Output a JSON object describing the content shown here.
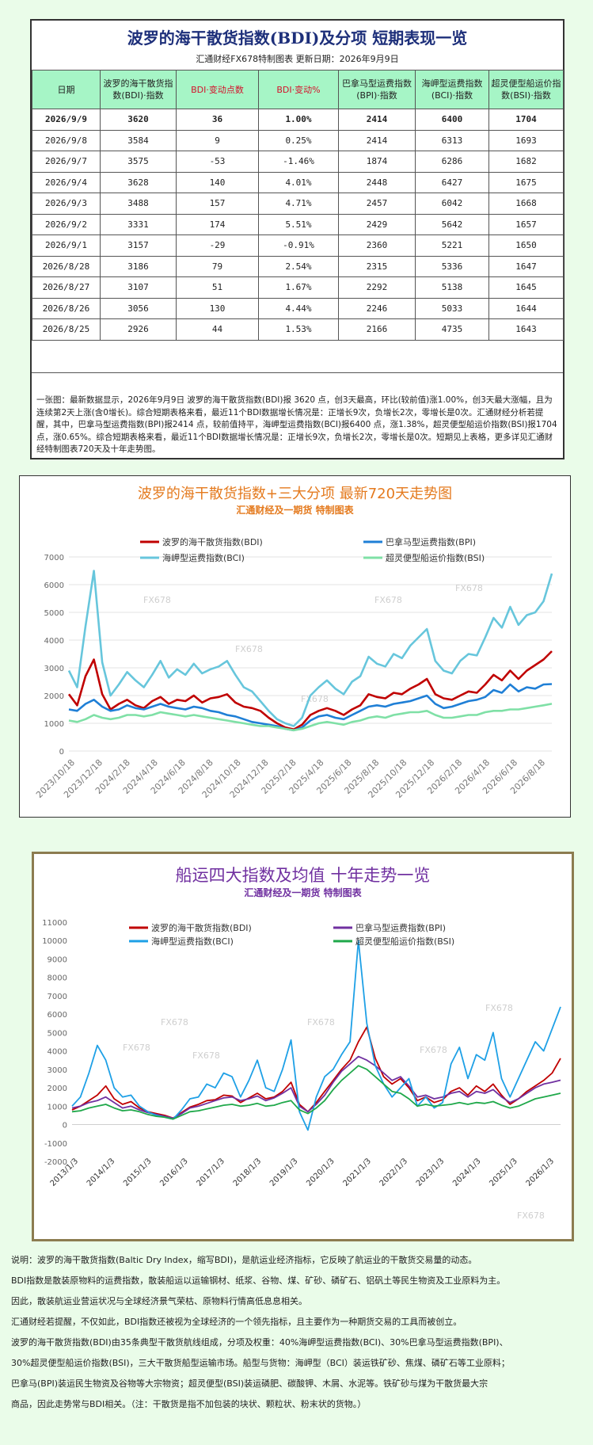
{
  "table_title": "波罗的海干散货指数(BDI)及分项  短期表现一览",
  "table_subtitle": "汇通财经FX678特制图表      更新日期：2026年9月9日",
  "columns": [
    "日期",
    "波罗的海干散货指数(BDI)·指数",
    "BDI·变动点数",
    "BDI·变动%",
    "巴拿马型运费指数(BPI)·指数",
    "海岬型运费指数(BCI)·指数",
    "超灵便型船运价指数(BSI)·指数"
  ],
  "rows": [
    [
      "2026/9/9",
      "3620",
      "36",
      "1.00%",
      "2414",
      "6400",
      "1704"
    ],
    [
      "2026/9/8",
      "3584",
      "9",
      "0.25%",
      "2414",
      "6313",
      "1693"
    ],
    [
      "2026/9/7",
      "3575",
      "-53",
      "-1.46%",
      "1874",
      "6286",
      "1682"
    ],
    [
      "2026/9/4",
      "3628",
      "140",
      "4.01%",
      "2448",
      "6427",
      "1675"
    ],
    [
      "2026/9/3",
      "3488",
      "157",
      "4.71%",
      "2457",
      "6042",
      "1668"
    ],
    [
      "2026/9/2",
      "3331",
      "174",
      "5.51%",
      "2429",
      "5642",
      "1657"
    ],
    [
      "2026/9/1",
      "3157",
      "-29",
      "-0.91%",
      "2360",
      "5221",
      "1650"
    ],
    [
      "2026/8/28",
      "3186",
      "79",
      "2.54%",
      "2315",
      "5336",
      "1647"
    ],
    [
      "2026/8/27",
      "3107",
      "51",
      "1.67%",
      "2292",
      "5138",
      "1645"
    ],
    [
      "2026/8/26",
      "3056",
      "130",
      "4.44%",
      "2246",
      "5033",
      "1644"
    ],
    [
      "2026/8/25",
      "2926",
      "44",
      "1.53%",
      "2166",
      "4735",
      "1643"
    ]
  ],
  "summary": "一张图：最新数据显示，2026年9月9日 波罗的海干散货指数(BDI)报 3620 点，创3天最高，环比(较前值)涨1.00%，创3天最大涨幅，且为连续第2天上涨(含0增长)。综合短期表格来看，最近11个BDI数据增长情况是：正增长9次，负增长2次，零增长是0次。汇通财经分析若提醒，其中，巴拿马型运费指数(BPI)报2414 点，较前值持平，海岬型运费指数(BCI)报6400 点，涨1.38%，超灵便型船运价指数(BSI)报1704 点，涨0.65%。综合短期表格来看，最近11个BDI数据增长情况是：正增长9次，负增长2次，零增长是0次。短期见上表格，更多详见汇通财经特制图表720天及十年走势图。",
  "chart_data": [
    {
      "type": "line",
      "title": "波罗的海干散货指数+三大分项  最新720天走势图",
      "subtitle": "汇通财经及一期货  特制图表",
      "watermark": "FX678",
      "ylim": [
        0,
        7000
      ],
      "yticks": [
        0,
        1000,
        2000,
        3000,
        4000,
        5000,
        6000,
        7000
      ],
      "x_labels": [
        "2023/10/18",
        "2023/12/18",
        "2024/2/18",
        "2024/4/18",
        "2024/6/18",
        "2024/8/18",
        "2024/10/18",
        "2024/12/18",
        "2025/2/18",
        "2025/4/18",
        "2025/6/18",
        "2025/8/18",
        "2025/10/18",
        "2025/12/18",
        "2026/2/18",
        "2026/4/18",
        "2026/6/18",
        "2026/8/18"
      ],
      "grid": true,
      "legend_position": "top",
      "series": [
        {
          "name": "波罗的海干散货指数(BDI)",
          "color": "#c00000",
          "values": [
            2050,
            1650,
            2700,
            3300,
            2050,
            1500,
            1700,
            1850,
            1650,
            1550,
            1800,
            1950,
            1700,
            1850,
            1800,
            2000,
            1750,
            1900,
            1950,
            2050,
            1750,
            1600,
            1550,
            1450,
            1200,
            1000,
            850,
            780,
            950,
            1300,
            1450,
            1550,
            1450,
            1300,
            1500,
            1650,
            2050,
            1950,
            1900,
            2100,
            2050,
            2250,
            2400,
            2600,
            2050,
            1900,
            1850,
            2000,
            2150,
            2100,
            2400,
            2750,
            2550,
            2900,
            2600,
            2900,
            3100,
            3300,
            3600
          ]
        },
        {
          "name": "巴拿马型运费指数(BPI)",
          "color": "#1f7fd6",
          "values": [
            1500,
            1450,
            1700,
            1850,
            1600,
            1450,
            1500,
            1650,
            1550,
            1500,
            1600,
            1700,
            1600,
            1550,
            1500,
            1600,
            1550,
            1450,
            1400,
            1300,
            1250,
            1150,
            1050,
            1000,
            950,
            900,
            800,
            750,
            850,
            1100,
            1250,
            1300,
            1200,
            1150,
            1300,
            1450,
            1600,
            1650,
            1600,
            1700,
            1750,
            1800,
            1900,
            2000,
            1700,
            1550,
            1600,
            1700,
            1800,
            1850,
            1950,
            2200,
            2100,
            2400,
            2150,
            2300,
            2250,
            2400,
            2414
          ]
        },
        {
          "name": "海岬型运费指数(BCI)",
          "color": "#67c6dc",
          "values": [
            2900,
            2300,
            4500,
            6500,
            3200,
            2000,
            2400,
            2850,
            2550,
            2300,
            2750,
            3250,
            2650,
            2950,
            2750,
            3150,
            2800,
            2950,
            3050,
            3250,
            2750,
            2300,
            2150,
            1800,
            1450,
            1150,
            1000,
            900,
            1200,
            2000,
            2300,
            2550,
            2250,
            2050,
            2500,
            2700,
            3400,
            3150,
            3050,
            3500,
            3350,
            3800,
            4100,
            4400,
            3250,
            2900,
            2800,
            3250,
            3500,
            3450,
            4100,
            4800,
            4450,
            5200,
            4550,
            4900,
            5000,
            5400,
            6400
          ]
        },
        {
          "name": "超灵便型船运价指数(BSI)",
          "color": "#7fe0a6",
          "values": [
            1100,
            1050,
            1150,
            1300,
            1200,
            1150,
            1200,
            1300,
            1300,
            1250,
            1300,
            1400,
            1350,
            1300,
            1250,
            1300,
            1250,
            1200,
            1150,
            1100,
            1050,
            1000,
            950,
            900,
            900,
            850,
            800,
            750,
            800,
            900,
            1000,
            1050,
            1000,
            950,
            1050,
            1100,
            1200,
            1250,
            1200,
            1300,
            1350,
            1400,
            1400,
            1450,
            1300,
            1200,
            1200,
            1250,
            1300,
            1300,
            1400,
            1450,
            1450,
            1500,
            1500,
            1550,
            1600,
            1650,
            1704
          ]
        }
      ]
    },
    {
      "type": "line",
      "title": "船运四大指数及均值 十年走势一览",
      "subtitle": "汇通财经及一期货 特制图表",
      "watermark": "FX678",
      "ylim": [
        -2000,
        11000
      ],
      "yticks": [
        -2000,
        -1000,
        0,
        1000,
        2000,
        3000,
        4000,
        5000,
        6000,
        7000,
        8000,
        9000,
        10000,
        11000
      ],
      "x_labels": [
        "2013/1/3",
        "2014/1/3",
        "2015/1/3",
        "2016/1/3",
        "2017/1/3",
        "2018/1/3",
        "2019/1/3",
        "2020/1/3",
        "2021/1/3",
        "2022/1/3",
        "2023/1/3",
        "2024/1/3",
        "2025/1/3",
        "2026/1/3"
      ],
      "grid": false,
      "legend_position": "top",
      "series": [
        {
          "name": "波罗的海干散货指数(BDI)",
          "color": "#c00000",
          "values": [
            800,
            1000,
            1300,
            1600,
            2100,
            1400,
            1100,
            1250,
            900,
            700,
            600,
            500,
            350,
            650,
            950,
            1100,
            1300,
            1350,
            1600,
            1550,
            1200,
            1450,
            1700,
            1400,
            1500,
            1800,
            2300,
            1100,
            700,
            1200,
            1800,
            2400,
            3000,
            3500,
            4500,
            5300,
            3600,
            2600,
            2200,
            2500,
            2000,
            1300,
            1500,
            1200,
            1350,
            1800,
            2000,
            1600,
            2100,
            1800,
            2200,
            1600,
            1100,
            1400,
            1800,
            2100,
            2400,
            2800,
            3600
          ]
        },
        {
          "name": "巴拿马型运费指数(BPI)",
          "color": "#7030a0",
          "values": [
            900,
            1000,
            1200,
            1300,
            1500,
            1200,
            900,
            1000,
            800,
            650,
            550,
            450,
            350,
            600,
            900,
            1000,
            1150,
            1300,
            1450,
            1500,
            1300,
            1400,
            1550,
            1300,
            1450,
            1700,
            2000,
            1000,
            700,
            1100,
            1600,
            2300,
            2900,
            3300,
            3700,
            3500,
            3200,
            2800,
            2400,
            2600,
            2100,
            1500,
            1600,
            1400,
            1500,
            1700,
            1800,
            1500,
            1800,
            1700,
            1900,
            1500,
            1200,
            1400,
            1700,
            2000,
            2200,
            2300,
            2414
          ]
        },
        {
          "name": "海岬型运费指数(BCI)",
          "color": "#1ea0e6",
          "values": [
            1000,
            1500,
            2800,
            4300,
            3500,
            2000,
            1500,
            1600,
            1000,
            700,
            500,
            400,
            300,
            800,
            1400,
            1500,
            2200,
            2000,
            2800,
            2600,
            1500,
            2400,
            3500,
            2000,
            1800,
            3000,
            4600,
            700,
            -300,
            1500,
            2600,
            3000,
            3800,
            4500,
            10000,
            5500,
            3200,
            2200,
            1500,
            2000,
            2500,
            1000,
            1500,
            900,
            1200,
            3300,
            4200,
            2500,
            3800,
            3500,
            5000,
            2500,
            1500,
            2500,
            3500,
            4500,
            4000,
            5200,
            6400
          ]
        },
        {
          "name": "超灵便型船运价指数(BSI)",
          "color": "#1fa84a",
          "values": [
            700,
            750,
            900,
            1000,
            1100,
            900,
            750,
            800,
            700,
            550,
            450,
            400,
            300,
            500,
            700,
            750,
            850,
            950,
            1050,
            1100,
            1000,
            1050,
            1150,
            1000,
            1050,
            1200,
            1300,
            800,
            600,
            900,
            1300,
            1900,
            2400,
            2800,
            3200,
            3000,
            2600,
            2200,
            1800,
            1700,
            1400,
            1000,
            1100,
            1000,
            1050,
            1100,
            1200,
            1100,
            1200,
            1150,
            1250,
            1050,
            900,
            1000,
            1200,
            1400,
            1500,
            1600,
            1704
          ]
        }
      ]
    }
  ],
  "explanation": [
    "说明：波罗的海干散货指数(Baltic Dry Index，缩写BDI)，是航运业经济指标，它反映了航运业的干散货交易量的动态。",
    "BDI指数是散装原物料的运费指数，散装船运以运输钢材、纸浆、谷物、煤、矿砂、磷矿石、铝矾土等民生物资及工业原料为主。",
    "因此，散装航运业营运状况与全球经济景气荣枯、原物料行情高低息息相关。",
    "汇通财经若提醒，不仅如此，BDI指数还被视为全球经济的一个领先指标，且主要作为一种期货交易的工具而被创立。",
    "波罗的海干散货指数(BDI)由35条典型干散货航线组成，分项及权重：40%海岬型运费指数(BCI)、30%巴拿马型运费指数(BPI)、",
    "30%超灵便型船运价指数(BSI)，三大干散货船型运输市场。船型与货物：海岬型（BCI）装运铁矿砂、焦煤、磷矿石等工业原料；",
    "巴拿马(BPI)装运民生物资及谷物等大宗物资；超灵便型(BSI)装运磷肥、碳酸钾、木屑、水泥等。铁矿砂与煤为干散货最大宗",
    "商品，因此走势常与BDI相关。（注：干散货是指不加包装的块状、颗粒状、粉末状的货物。）"
  ]
}
